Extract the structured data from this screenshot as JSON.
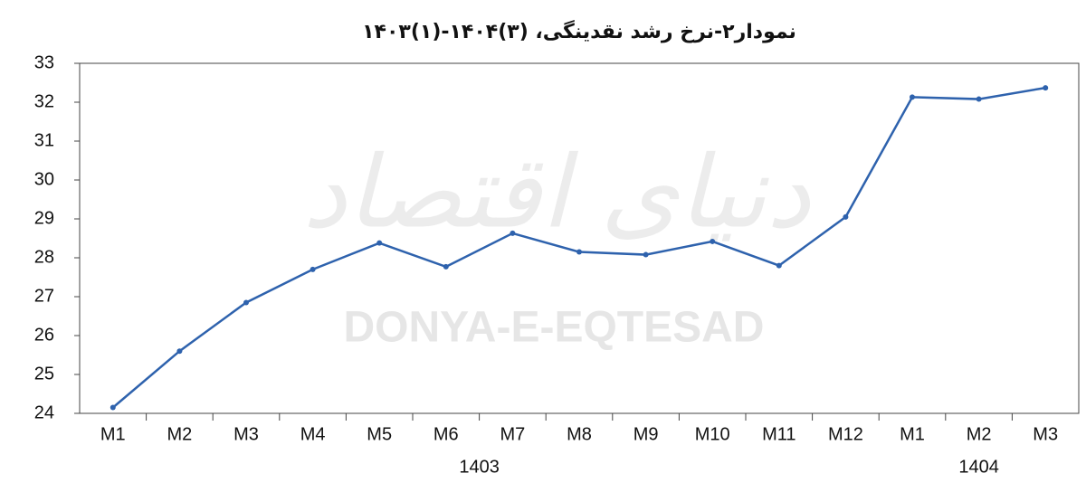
{
  "chart_data": {
    "type": "line",
    "title": "نمودار۲-نرخ رشد نقدینگی، (۳)۱۴۰۴-(۱)۱۴۰۳",
    "watermark": "DONYA-E-EQTESAD",
    "watermark_logo": "دنیای اقتصاد",
    "categories": [
      "M1",
      "M2",
      "M3",
      "M4",
      "M5",
      "M6",
      "M7",
      "M8",
      "M9",
      "M10",
      "M11",
      "M12",
      "M1",
      "M2",
      "M3"
    ],
    "groups": [
      "1403",
      "1404"
    ],
    "series": [
      {
        "color": "#2e62ad",
        "values": [
          24.15,
          25.6,
          26.85,
          27.7,
          28.38,
          27.77,
          28.63,
          28.15,
          28.08,
          28.42,
          27.8,
          29.05,
          32.13,
          32.08,
          32.37
        ]
      }
    ],
    "ylim": [
      24,
      33
    ],
    "yticks": [
      24,
      25,
      26,
      27,
      28,
      29,
      30,
      31,
      32,
      33
    ],
    "grid": false
  }
}
